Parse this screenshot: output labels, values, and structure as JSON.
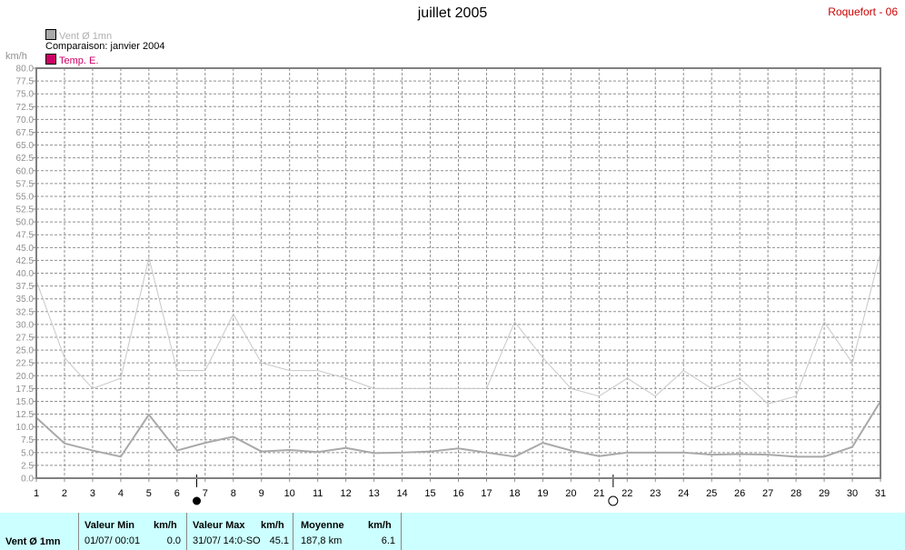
{
  "title": "juillet 2005",
  "station": "Roquefort - 06",
  "legend": {
    "series1": "Vent Ø 1mn",
    "comparison": "Comparaison: janvier 2004",
    "series2": "Temp. E."
  },
  "unit": "km/h",
  "colors": {
    "series1": "#a9a9a9",
    "comparison": "#c8c8c8",
    "series2": "#cc0066",
    "frame": "#808080",
    "stats_bg": "#ccffff"
  },
  "chart_data": {
    "type": "line",
    "x": [
      1,
      2,
      3,
      4,
      5,
      6,
      7,
      8,
      9,
      10,
      11,
      12,
      13,
      14,
      15,
      16,
      17,
      18,
      19,
      20,
      21,
      22,
      23,
      24,
      25,
      26,
      27,
      28,
      29,
      30,
      31
    ],
    "ylim": [
      0,
      80
    ],
    "ylabel": "km/h",
    "yticks": [
      "0.0",
      "2.5",
      "5.0",
      "7.5",
      "10.0",
      "12.5",
      "15.0",
      "17.5",
      "20.0",
      "22.5",
      "25.0",
      "27.5",
      "30.0",
      "32.5",
      "35.0",
      "37.5",
      "40.0",
      "42.5",
      "45.0",
      "47.5",
      "50.0",
      "52.5",
      "55.0",
      "57.5",
      "60.0",
      "62.5",
      "65.0",
      "67.5",
      "70.0",
      "72.5",
      "75.0",
      "77.5",
      "80.0"
    ],
    "xticks": [
      "1",
      "2",
      "3",
      "4",
      "5",
      "6",
      "7",
      "8",
      "9",
      "10",
      "11",
      "12",
      "13",
      "14",
      "15",
      "16",
      "17",
      "18",
      "19",
      "20",
      "21",
      "22",
      "23",
      "24",
      "25",
      "26",
      "27",
      "28",
      "29",
      "30",
      "31"
    ],
    "grid": true,
    "series": [
      {
        "name": "Vent Ø 1mn",
        "values": [
          11.8,
          6.8,
          5.4,
          4.2,
          12.4,
          5.4,
          6.9,
          8.1,
          5.2,
          5.5,
          5.1,
          5.9,
          4.9,
          5.0,
          5.2,
          5.8,
          5.0,
          4.2,
          6.9,
          5.4,
          4.3,
          5.0,
          5.0,
          5.0,
          4.6,
          4.7,
          4.6,
          4.2,
          4.2,
          6.1,
          15.0
        ]
      },
      {
        "name": "Comparaison: janvier 2004",
        "values": [
          38.5,
          23.5,
          17.5,
          19.5,
          43.0,
          21.0,
          21.0,
          32.0,
          22.5,
          21.0,
          21.0,
          19.5,
          17.5,
          17.5,
          17.5,
          17.5,
          17.5,
          30.5,
          23.5,
          17.5,
          16.0,
          19.5,
          16.0,
          21.0,
          17.5,
          19.5,
          14.5,
          16.0,
          30.5,
          22.5,
          44.0
        ]
      }
    ],
    "moon_phases": [
      {
        "x": 6.7,
        "phase": "full"
      },
      {
        "x": 21.5,
        "phase": "new"
      }
    ]
  },
  "stats": {
    "series_label": "Vent Ø 1mn",
    "min_header": "Valeur Min",
    "min_unit": "km/h",
    "min_when": "01/07/  00:01",
    "min_value": "0.0",
    "max_header": "Valeur Max",
    "max_unit": "km/h",
    "max_when": "31/07/  14:0-SO",
    "max_value": "45.1",
    "avg_header": "Moyenne",
    "avg_unit": "km/h",
    "avg_dist": "187,8 km",
    "avg_value": "6.1"
  }
}
